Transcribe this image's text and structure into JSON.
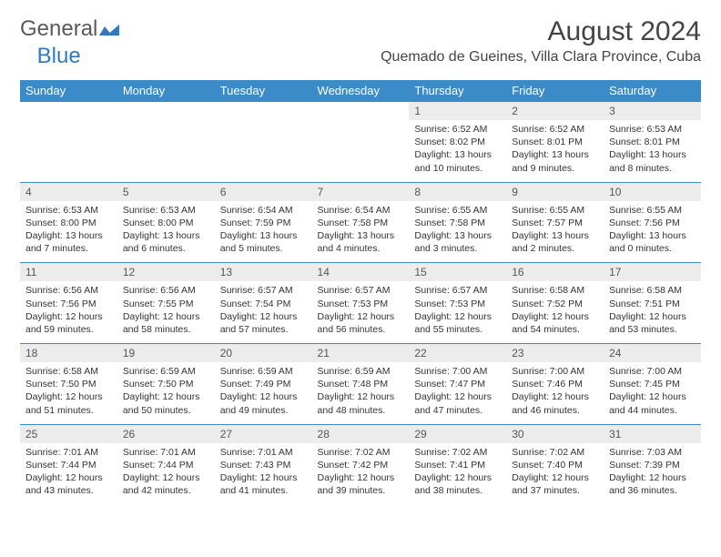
{
  "brand": {
    "part1": "General",
    "part2": "Blue"
  },
  "title": "August 2024",
  "location": "Quemado de Gueines, Villa Clara Province, Cuba",
  "colors": {
    "header_bg": "#3b8bc8",
    "header_text": "#ffffff",
    "daynum_bg": "#ececec",
    "border": "#3b8bc8",
    "brand_gray": "#5a5a5a",
    "brand_blue": "#2f7bbf"
  },
  "day_headers": [
    "Sunday",
    "Monday",
    "Tuesday",
    "Wednesday",
    "Thursday",
    "Friday",
    "Saturday"
  ],
  "weeks": [
    [
      {
        "blank": true
      },
      {
        "blank": true
      },
      {
        "blank": true
      },
      {
        "blank": true
      },
      {
        "n": "1",
        "sr": "6:52 AM",
        "ss": "8:02 PM",
        "dl": "13 hours and 10 minutes."
      },
      {
        "n": "2",
        "sr": "6:52 AM",
        "ss": "8:01 PM",
        "dl": "13 hours and 9 minutes."
      },
      {
        "n": "3",
        "sr": "6:53 AM",
        "ss": "8:01 PM",
        "dl": "13 hours and 8 minutes."
      }
    ],
    [
      {
        "n": "4",
        "sr": "6:53 AM",
        "ss": "8:00 PM",
        "dl": "13 hours and 7 minutes."
      },
      {
        "n": "5",
        "sr": "6:53 AM",
        "ss": "8:00 PM",
        "dl": "13 hours and 6 minutes."
      },
      {
        "n": "6",
        "sr": "6:54 AM",
        "ss": "7:59 PM",
        "dl": "13 hours and 5 minutes."
      },
      {
        "n": "7",
        "sr": "6:54 AM",
        "ss": "7:58 PM",
        "dl": "13 hours and 4 minutes."
      },
      {
        "n": "8",
        "sr": "6:55 AM",
        "ss": "7:58 PM",
        "dl": "13 hours and 3 minutes."
      },
      {
        "n": "9",
        "sr": "6:55 AM",
        "ss": "7:57 PM",
        "dl": "13 hours and 2 minutes."
      },
      {
        "n": "10",
        "sr": "6:55 AM",
        "ss": "7:56 PM",
        "dl": "13 hours and 0 minutes."
      }
    ],
    [
      {
        "n": "11",
        "sr": "6:56 AM",
        "ss": "7:56 PM",
        "dl": "12 hours and 59 minutes."
      },
      {
        "n": "12",
        "sr": "6:56 AM",
        "ss": "7:55 PM",
        "dl": "12 hours and 58 minutes."
      },
      {
        "n": "13",
        "sr": "6:57 AM",
        "ss": "7:54 PM",
        "dl": "12 hours and 57 minutes."
      },
      {
        "n": "14",
        "sr": "6:57 AM",
        "ss": "7:53 PM",
        "dl": "12 hours and 56 minutes."
      },
      {
        "n": "15",
        "sr": "6:57 AM",
        "ss": "7:53 PM",
        "dl": "12 hours and 55 minutes."
      },
      {
        "n": "16",
        "sr": "6:58 AM",
        "ss": "7:52 PM",
        "dl": "12 hours and 54 minutes."
      },
      {
        "n": "17",
        "sr": "6:58 AM",
        "ss": "7:51 PM",
        "dl": "12 hours and 53 minutes."
      }
    ],
    [
      {
        "n": "18",
        "sr": "6:58 AM",
        "ss": "7:50 PM",
        "dl": "12 hours and 51 minutes."
      },
      {
        "n": "19",
        "sr": "6:59 AM",
        "ss": "7:50 PM",
        "dl": "12 hours and 50 minutes."
      },
      {
        "n": "20",
        "sr": "6:59 AM",
        "ss": "7:49 PM",
        "dl": "12 hours and 49 minutes."
      },
      {
        "n": "21",
        "sr": "6:59 AM",
        "ss": "7:48 PM",
        "dl": "12 hours and 48 minutes."
      },
      {
        "n": "22",
        "sr": "7:00 AM",
        "ss": "7:47 PM",
        "dl": "12 hours and 47 minutes."
      },
      {
        "n": "23",
        "sr": "7:00 AM",
        "ss": "7:46 PM",
        "dl": "12 hours and 46 minutes."
      },
      {
        "n": "24",
        "sr": "7:00 AM",
        "ss": "7:45 PM",
        "dl": "12 hours and 44 minutes."
      }
    ],
    [
      {
        "n": "25",
        "sr": "7:01 AM",
        "ss": "7:44 PM",
        "dl": "12 hours and 43 minutes."
      },
      {
        "n": "26",
        "sr": "7:01 AM",
        "ss": "7:44 PM",
        "dl": "12 hours and 42 minutes."
      },
      {
        "n": "27",
        "sr": "7:01 AM",
        "ss": "7:43 PM",
        "dl": "12 hours and 41 minutes."
      },
      {
        "n": "28",
        "sr": "7:02 AM",
        "ss": "7:42 PM",
        "dl": "12 hours and 39 minutes."
      },
      {
        "n": "29",
        "sr": "7:02 AM",
        "ss": "7:41 PM",
        "dl": "12 hours and 38 minutes."
      },
      {
        "n": "30",
        "sr": "7:02 AM",
        "ss": "7:40 PM",
        "dl": "12 hours and 37 minutes."
      },
      {
        "n": "31",
        "sr": "7:03 AM",
        "ss": "7:39 PM",
        "dl": "12 hours and 36 minutes."
      }
    ]
  ],
  "labels": {
    "sunrise": "Sunrise: ",
    "sunset": "Sunset: ",
    "daylight": "Daylight: "
  }
}
